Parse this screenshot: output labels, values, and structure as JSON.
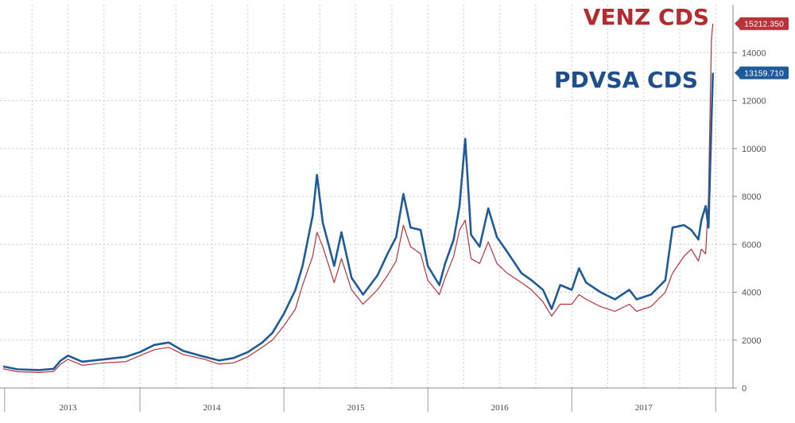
{
  "chart_data": {
    "type": "line",
    "titles": {
      "venz": "VENZ CDS",
      "pdvsa": "PDVSA CDS"
    },
    "ylim": [
      0,
      16000
    ],
    "y_ticks": [
      {
        "value": 0,
        "label": "0"
      },
      {
        "value": 2000,
        "label": "2000"
      },
      {
        "value": 4000,
        "label": "4000"
      },
      {
        "value": 6000,
        "label": "6000"
      },
      {
        "value": 8000,
        "label": "8000"
      },
      {
        "value": 10000,
        "label": "10000"
      },
      {
        "value": 12000,
        "label": "12000"
      },
      {
        "value": 14000,
        "label": "14000"
      }
    ],
    "x_range": [
      2012.55,
      2017.62
    ],
    "x_ticks": [
      {
        "value": 2013,
        "label": "2013"
      },
      {
        "value": 2014,
        "label": "2014"
      },
      {
        "value": 2015,
        "label": "2015"
      },
      {
        "value": 2016,
        "label": "2016"
      },
      {
        "value": 2017,
        "label": "2017"
      }
    ],
    "x_dividers": [
      2012.56,
      2013.5,
      2014.5,
      2015.5,
      2016.5,
      2017.5
    ],
    "grid": true,
    "series": [
      {
        "name": "VENZ CDS",
        "color": "#b8323a",
        "last_value_label": "15212.350",
        "points": [
          [
            2012.55,
            800
          ],
          [
            2012.65,
            680
          ],
          [
            2012.8,
            650
          ],
          [
            2012.9,
            690
          ],
          [
            2012.95,
            1000
          ],
          [
            2013.0,
            1200
          ],
          [
            2013.1,
            950
          ],
          [
            2013.25,
            1050
          ],
          [
            2013.4,
            1100
          ],
          [
            2013.5,
            1350
          ],
          [
            2013.6,
            1600
          ],
          [
            2013.7,
            1700
          ],
          [
            2013.8,
            1400
          ],
          [
            2013.95,
            1200
          ],
          [
            2014.05,
            1000
          ],
          [
            2014.15,
            1050
          ],
          [
            2014.25,
            1300
          ],
          [
            2014.35,
            1700
          ],
          [
            2014.42,
            2000
          ],
          [
            2014.5,
            2600
          ],
          [
            2014.58,
            3300
          ],
          [
            2014.63,
            4300
          ],
          [
            2014.7,
            5500
          ],
          [
            2014.73,
            6500
          ],
          [
            2014.77,
            5900
          ],
          [
            2014.85,
            4400
          ],
          [
            2014.9,
            5400
          ],
          [
            2014.97,
            4100
          ],
          [
            2015.05,
            3500
          ],
          [
            2015.15,
            4100
          ],
          [
            2015.22,
            4700
          ],
          [
            2015.28,
            5300
          ],
          [
            2015.33,
            6800
          ],
          [
            2015.38,
            5900
          ],
          [
            2015.45,
            5600
          ],
          [
            2015.5,
            4500
          ],
          [
            2015.58,
            3900
          ],
          [
            2015.62,
            4600
          ],
          [
            2015.68,
            5500
          ],
          [
            2015.72,
            6600
          ],
          [
            2015.76,
            7000
          ],
          [
            2015.8,
            5400
          ],
          [
            2015.86,
            5200
          ],
          [
            2015.92,
            6100
          ],
          [
            2015.98,
            5200
          ],
          [
            2016.05,
            4800
          ],
          [
            2016.15,
            4400
          ],
          [
            2016.22,
            4100
          ],
          [
            2016.3,
            3600
          ],
          [
            2016.36,
            3000
          ],
          [
            2016.42,
            3500
          ],
          [
            2016.5,
            3500
          ],
          [
            2016.55,
            3900
          ],
          [
            2016.6,
            3700
          ],
          [
            2016.7,
            3400
          ],
          [
            2016.8,
            3200
          ],
          [
            2016.9,
            3500
          ],
          [
            2016.95,
            3200
          ],
          [
            2017.05,
            3400
          ],
          [
            2017.15,
            4000
          ],
          [
            2017.2,
            4800
          ],
          [
            2017.28,
            5500
          ],
          [
            2017.33,
            5800
          ],
          [
            2017.38,
            5300
          ],
          [
            2017.4,
            5800
          ],
          [
            2017.43,
            5600
          ],
          [
            2017.45,
            8000
          ],
          [
            2017.47,
            14500
          ],
          [
            2017.48,
            15212.35
          ]
        ]
      },
      {
        "name": "PDVSA CDS",
        "color": "#1f5b99",
        "last_value_label": "13159.710",
        "points": [
          [
            2012.55,
            900
          ],
          [
            2012.65,
            780
          ],
          [
            2012.8,
            750
          ],
          [
            2012.9,
            800
          ],
          [
            2012.95,
            1150
          ],
          [
            2013.0,
            1350
          ],
          [
            2013.1,
            1100
          ],
          [
            2013.25,
            1200
          ],
          [
            2013.4,
            1300
          ],
          [
            2013.5,
            1500
          ],
          [
            2013.6,
            1800
          ],
          [
            2013.7,
            1900
          ],
          [
            2013.8,
            1550
          ],
          [
            2013.95,
            1300
          ],
          [
            2014.05,
            1150
          ],
          [
            2014.15,
            1250
          ],
          [
            2014.25,
            1500
          ],
          [
            2014.35,
            1900
          ],
          [
            2014.42,
            2300
          ],
          [
            2014.5,
            3100
          ],
          [
            2014.58,
            4100
          ],
          [
            2014.63,
            5100
          ],
          [
            2014.7,
            7200
          ],
          [
            2014.73,
            8900
          ],
          [
            2014.77,
            6900
          ],
          [
            2014.85,
            5100
          ],
          [
            2014.9,
            6500
          ],
          [
            2014.97,
            4600
          ],
          [
            2015.05,
            3900
          ],
          [
            2015.15,
            4700
          ],
          [
            2015.22,
            5600
          ],
          [
            2015.28,
            6300
          ],
          [
            2015.33,
            8100
          ],
          [
            2015.38,
            6700
          ],
          [
            2015.45,
            6600
          ],
          [
            2015.5,
            5100
          ],
          [
            2015.58,
            4300
          ],
          [
            2015.62,
            5200
          ],
          [
            2015.68,
            6200
          ],
          [
            2015.72,
            7600
          ],
          [
            2015.76,
            10400
          ],
          [
            2015.8,
            6400
          ],
          [
            2015.86,
            5900
          ],
          [
            2015.92,
            7500
          ],
          [
            2015.98,
            6300
          ],
          [
            2016.05,
            5700
          ],
          [
            2016.15,
            4800
          ],
          [
            2016.22,
            4500
          ],
          [
            2016.3,
            4100
          ],
          [
            2016.36,
            3300
          ],
          [
            2016.42,
            4300
          ],
          [
            2016.5,
            4100
          ],
          [
            2016.55,
            5000
          ],
          [
            2016.6,
            4400
          ],
          [
            2016.7,
            4000
          ],
          [
            2016.8,
            3700
          ],
          [
            2016.9,
            4100
          ],
          [
            2016.95,
            3700
          ],
          [
            2017.05,
            3900
          ],
          [
            2017.15,
            4500
          ],
          [
            2017.2,
            6700
          ],
          [
            2017.28,
            6800
          ],
          [
            2017.33,
            6600
          ],
          [
            2017.38,
            6200
          ],
          [
            2017.4,
            7000
          ],
          [
            2017.43,
            7600
          ],
          [
            2017.45,
            6700
          ],
          [
            2017.47,
            11000
          ],
          [
            2017.48,
            13159.71
          ]
        ]
      }
    ]
  }
}
